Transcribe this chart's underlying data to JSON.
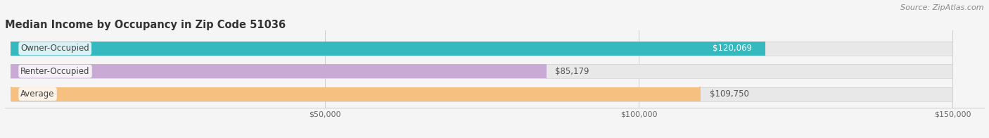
{
  "title": "Median Income by Occupancy in Zip Code 51036",
  "source": "Source: ZipAtlas.com",
  "categories": [
    "Owner-Occupied",
    "Renter-Occupied",
    "Average"
  ],
  "values": [
    120069,
    85179,
    109750
  ],
  "bar_colors": [
    "#35b8be",
    "#c9aad4",
    "#f5c080"
  ],
  "label_texts": [
    "$120,069",
    "$85,179",
    "$109,750"
  ],
  "label_inside": [
    true,
    false,
    false
  ],
  "xlim": [
    0,
    150000
  ],
  "xticks": [
    50000,
    100000,
    150000
  ],
  "xticklabels": [
    "$50,000",
    "$100,000",
    "$150,000"
  ],
  "background_color": "#f5f5f5",
  "bar_bg_color": "#e8e8e8",
  "title_fontsize": 10.5,
  "source_fontsize": 8,
  "label_fontsize": 8.5,
  "cat_fontsize": 8.5,
  "tick_fontsize": 8
}
